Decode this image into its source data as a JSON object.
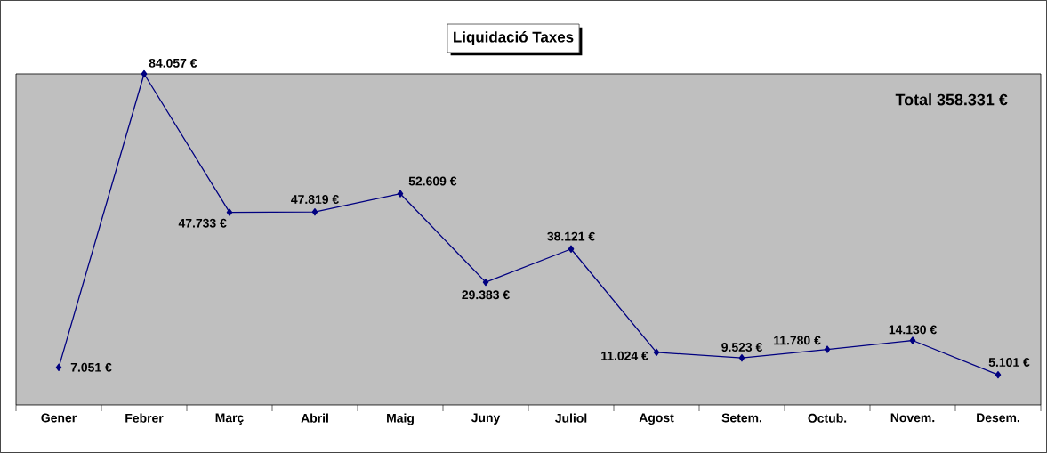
{
  "chart_data": {
    "type": "line",
    "title": "Liquidació Taxes",
    "categories": [
      "Gener",
      "Febrer",
      "Març",
      "Abril",
      "Maig",
      "Juny",
      "Juliol",
      "Agost",
      "Setem.",
      "Octub.",
      "Novem.",
      "Desem."
    ],
    "values": [
      7051,
      84057,
      47733,
      47819,
      52609,
      29383,
      38121,
      11024,
      9523,
      11780,
      14130,
      5101
    ],
    "value_labels": [
      "7.051 €",
      "84.057 €",
      "47.733 €",
      "47.819 €",
      "52.609 €",
      "29.383 €",
      "38.121 €",
      "11.024 €",
      "9.523 €",
      "11.780 €",
      "14.130 €",
      "5.101 €"
    ],
    "color": "#000080",
    "marker": "diamond",
    "line_style": "solid",
    "annotations": [
      "Total 358.331 €"
    ]
  }
}
